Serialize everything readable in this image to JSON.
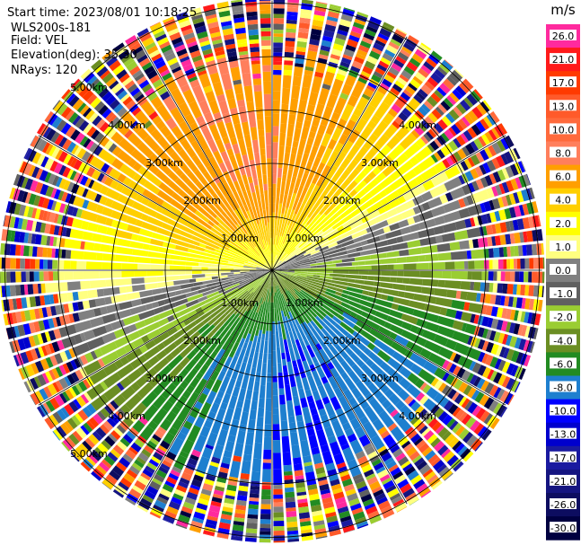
{
  "header": {
    "start_time": "Start time: 2023/08/01 10:18:25",
    "instrument": "WLS200s-181",
    "field": "Field: VEL",
    "elevation": "Elevation(deg): 35.30",
    "nrays": "NRays: 120"
  },
  "chart_data": {
    "type": "ppi",
    "n_rays": 120,
    "elevation_deg": 35.3,
    "range_ring_labels": [
      "1.00km",
      "2.00km",
      "3.00km",
      "4.00km",
      "5.00km"
    ],
    "range_rings_km": [
      1,
      2,
      3,
      4,
      5
    ],
    "spoke_count": 12,
    "colorbar": {
      "unit": "m/s",
      "tick_labels": [
        "26.0",
        "21.0",
        "17.0",
        "13.0",
        "10.0",
        "8.0",
        "6.0",
        "4.0",
        "2.0",
        "1.0",
        "0.0",
        "-1.0",
        "-2.0",
        "-4.0",
        "-6.0",
        "-8.0",
        "-10.0",
        "-13.0",
        "-17.0",
        "-21.0",
        "-26.0",
        "-30.0"
      ],
      "colors": [
        "#ff2a9e",
        "#ff1a1a",
        "#ff3a00",
        "#ff5a2a",
        "#ff6a3c",
        "#ff7f5c",
        "#ff9f00",
        "#ffcf00",
        "#ffff00",
        "#ffff80",
        "#808080",
        "#606060",
        "#9acd32",
        "#6b8e23",
        "#228b22",
        "#1e7fcf",
        "#0000ff",
        "#0000cd",
        "#1a1aa0",
        "#151580",
        "#0d0d60",
        "#000040"
      ]
    },
    "velocity_field": {
      "description_free": true,
      "max_velocity": 8.0,
      "peak_azimuth_deg": 345,
      "inner_range_km": 0.0,
      "noise_range_km": 4.0
    }
  }
}
